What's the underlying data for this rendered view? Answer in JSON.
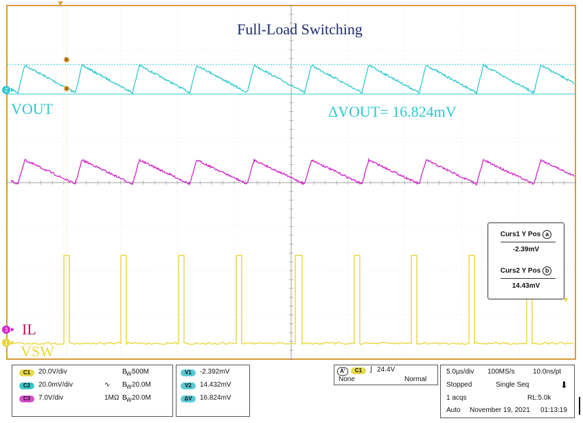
{
  "title": "Full-Load Switching",
  "labels": {
    "vout": "VOUT",
    "delta_vout": "ΔVOUT= 16.824mV",
    "il": "IL",
    "vsw": "VSW"
  },
  "markers": {
    "ch2": "2",
    "ch3": "3",
    "ch1": "1",
    "cursor_a": "a",
    "cursor_b": "b"
  },
  "colors": {
    "grid_bg": "#ffffff",
    "frame": "#d89a3a",
    "ch1_yellow": "#e8d63a",
    "ch2_cyan": "#2ec8cf",
    "ch3_magenta": "#d024c8",
    "title": "#1a2b6e",
    "il_label": "#b0185a"
  },
  "cursor_box": {
    "curs1_label": "Curs1 Y Pos",
    "curs1_circle": "a",
    "curs1_value": "-2.39mV",
    "curs2_label": "Curs2 Y Pos",
    "curs2_circle": "b",
    "curs2_value": "14.43mV"
  },
  "channels": [
    {
      "tag": "C1",
      "scale": "20.0V/div",
      "coupling": "",
      "bw": "500M",
      "bw_prefix": "B"
    },
    {
      "tag": "C2",
      "scale": "20.0mV/div",
      "coupling": "∿",
      "bw": "20.0M",
      "bw_prefix": "B"
    },
    {
      "tag": "C3",
      "scale": "7.0V/div",
      "coupling": "1MΩ",
      "bw": "20.0M",
      "bw_prefix": "B"
    }
  ],
  "bw_suffix": "W",
  "measurements": [
    {
      "tag": "V1",
      "value": "-2.392mV"
    },
    {
      "tag": "V2",
      "value": "14.432mV"
    },
    {
      "tag": "ΔV",
      "value": "16.824mV"
    }
  ],
  "trigger": {
    "a_tag": "A'",
    "source": "C1",
    "slope": "∫",
    "level": "24.4V",
    "left": "None",
    "mode": "Normal"
  },
  "timebase": {
    "time_div": "5.0µs/div",
    "sample_rate": "100MS/s",
    "resolution": "10.0ns/pt",
    "state": "Stopped",
    "seq": "Single Seq",
    "acqs": "1 acqs",
    "record_length": "RL:5.0k",
    "mode": "Auto",
    "date": "November 19, 2021",
    "time": "01:13:19",
    "arrow": "⬇"
  }
}
